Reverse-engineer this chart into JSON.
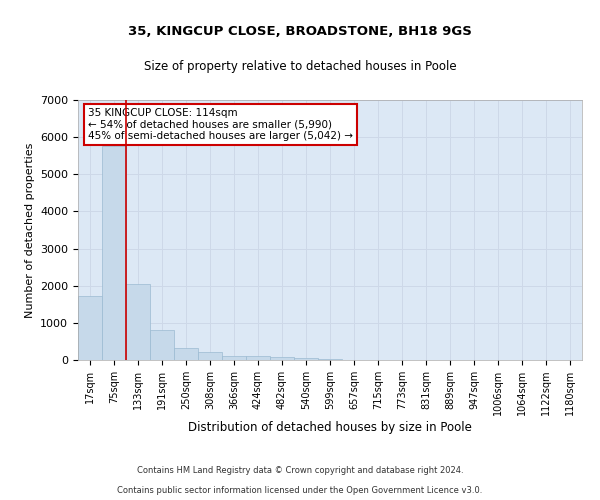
{
  "title1": "35, KINGCUP CLOSE, BROADSTONE, BH18 9GS",
  "title2": "Size of property relative to detached houses in Poole",
  "xlabel": "Distribution of detached houses by size in Poole",
  "ylabel": "Number of detached properties",
  "footnote1": "Contains HM Land Registry data © Crown copyright and database right 2024.",
  "footnote2": "Contains public sector information licensed under the Open Government Licence v3.0.",
  "annotation_title": "35 KINGCUP CLOSE: 114sqm",
  "annotation_line1": "← 54% of detached houses are smaller (5,990)",
  "annotation_line2": "45% of semi-detached houses are larger (5,042) →",
  "bar_color": "#c6d9ea",
  "bar_edge_color": "#9bbad1",
  "annotation_box_color": "#cc0000",
  "vline_color": "#cc0000",
  "grid_color": "#cdd8e8",
  "background_color": "#dce8f5",
  "bins": [
    "17sqm",
    "75sqm",
    "133sqm",
    "191sqm",
    "250sqm",
    "308sqm",
    "366sqm",
    "424sqm",
    "482sqm",
    "540sqm",
    "599sqm",
    "657sqm",
    "715sqm",
    "773sqm",
    "831sqm",
    "889sqm",
    "947sqm",
    "1006sqm",
    "1064sqm",
    "1122sqm",
    "1180sqm"
  ],
  "values": [
    1730,
    5750,
    2050,
    820,
    320,
    210,
    120,
    100,
    90,
    50,
    25,
    5,
    0,
    0,
    0,
    0,
    0,
    0,
    0,
    0,
    0
  ],
  "ylim": [
    0,
    7000
  ],
  "yticks": [
    0,
    1000,
    2000,
    3000,
    4000,
    5000,
    6000,
    7000
  ]
}
